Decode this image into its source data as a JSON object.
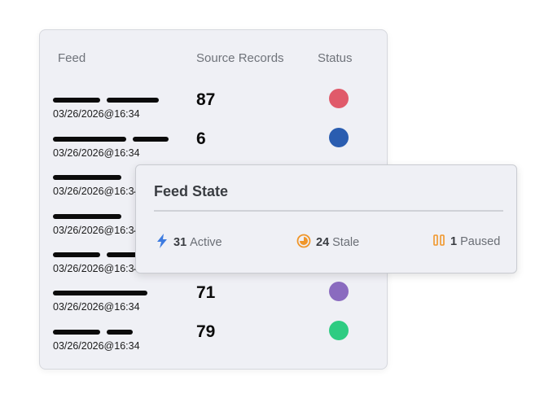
{
  "table": {
    "headers": {
      "feed": "Feed",
      "source_records": "Source Records",
      "status": "Status"
    },
    "rows": [
      {
        "date": "03/26/2026@16:34",
        "count": "87",
        "status_color": "#e05a6a"
      },
      {
        "date": "03/26/2026@16:34",
        "count": "6",
        "status_color": "#2a5db0"
      },
      {
        "date": "03/26/2026@16:34",
        "count": "",
        "status_color": ""
      },
      {
        "date": "03/26/2026@16:34",
        "count": "",
        "status_color": ""
      },
      {
        "date": "03/26/2026@16:34",
        "count": "",
        "status_color": ""
      },
      {
        "date": "03/26/2026@16:34",
        "count": "71",
        "status_color": "#8a6bbf"
      },
      {
        "date": "03/26/2026@16:34",
        "count": "79",
        "status_color": "#2ecc82"
      }
    ]
  },
  "feed_state": {
    "title": "Feed State",
    "active": {
      "count": "31",
      "label": "Active",
      "icon": "bolt-icon",
      "color": "#3d7be0"
    },
    "stale": {
      "count": "24",
      "label": "Stale",
      "icon": "stale-clock-icon",
      "color": "#f0962a"
    },
    "paused": {
      "count": "1",
      "label": "Paused",
      "icon": "pause-icon",
      "color": "#f0962a"
    }
  }
}
